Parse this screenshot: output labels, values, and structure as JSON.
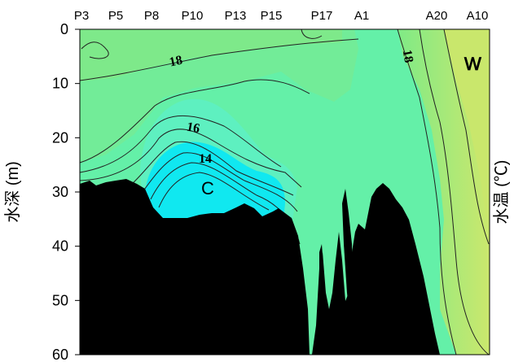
{
  "chart_data": {
    "type": "heatmap",
    "title": "",
    "ylabel": "水深 (m)",
    "ylabel_right": "水温 (℃)",
    "ylim": [
      0,
      60
    ],
    "y_inverted": true,
    "yticks": [
      0,
      10,
      20,
      30,
      40,
      50,
      60
    ],
    "stations": [
      "P3",
      "P5",
      "P8",
      "P10",
      "P13",
      "P15",
      "P17",
      "A1",
      "A20",
      "A10"
    ],
    "isotherm_labels": [
      {
        "text": "18",
        "position": "near P8, ~6 m depth"
      },
      {
        "text": "18",
        "position": "east of A1, ~6 m depth"
      },
      {
        "text": "16",
        "position": "near P10, ~18 m depth"
      },
      {
        "text": "14",
        "position": "near P10, ~24 m depth"
      }
    ],
    "regions": [
      {
        "text": "C",
        "meaning": "cold water mass (cyan), ~29 m, P10–P13"
      },
      {
        "text": "W",
        "meaning": "warm water (yellow-green), ~7 m, A10"
      }
    ],
    "colors": {
      "cold": "#00e8f4",
      "mid": "#5ef0ae",
      "upper": "#78ea88",
      "warm": "#cde86a",
      "seafloor": "#000000"
    }
  }
}
